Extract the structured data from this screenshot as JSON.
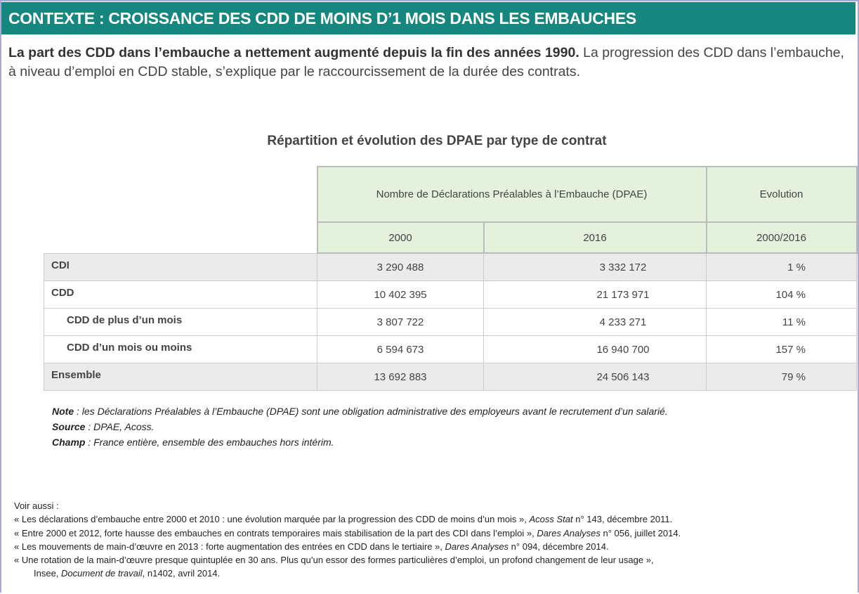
{
  "header": {
    "title": "CONTEXTE : CROISSANCE DES CDD DE MOINS D’1 MOIS DANS LES EMBAUCHES"
  },
  "intro": {
    "bold": "La part des CDD dans l’embauche a nettement augmenté depuis la fin des années 1990.",
    "rest": " La progression des CDD dans l’embauche, à niveau d’emploi en CDD stable, s’explique par le raccourcissement de la durée des contrats."
  },
  "table": {
    "title": "Répartition et évolution des DPAE par type de contrat",
    "header_group": "Nombre de Déclarations Préalables à l’Embauche (DPAE)",
    "header_evolution": "Evolution",
    "col_2000": "2000",
    "col_2016": "2016",
    "col_evol": "2000/2016",
    "rows": [
      {
        "label": "CDI",
        "v2000": "3 290 488",
        "v2016": "3 332 172",
        "evol": "1 %"
      },
      {
        "label": "CDD",
        "v2000": "10 402 395",
        "v2016": "21 173 971",
        "evol": "104 %"
      },
      {
        "label": "CDD de plus d’un mois",
        "v2000": "3 807 722",
        "v2016": "4 233 271",
        "evol": "11 %"
      },
      {
        "label": "CDD d’un mois ou moins",
        "v2000": "6 594 673",
        "v2016": "16 940 700",
        "evol": "157 %"
      },
      {
        "label": "Ensemble",
        "v2000": "13 692 883",
        "v2016": "24 506 143",
        "evol": "79 %"
      }
    ]
  },
  "notes": {
    "note_label": "Note",
    "note_text": " : les Déclarations Préalables à l’Embauche (DPAE) sont une obligation administrative des employeurs avant le recrutement d’un salarié.",
    "source_label": "Source",
    "source_text": " : DPAE, Acoss.",
    "champ_label": "Champ",
    "champ_text": " : France entière, ensemble des embauches hors intérim."
  },
  "voir": {
    "title": "Voir aussi :",
    "l1a": "« Les déclarations d’embauche entre 2000 et 2010 : une évolution marquée par la progression des CDD de moins d’un mois », ",
    "l1b": "Acoss Stat",
    "l1c": " n° 143, décembre 2011.",
    "l2a": "« Entre 2000 et 2012, forte hausse des embauches en contrats temporaires mais stabilisation de la part des CDI dans l’emploi », ",
    "l2b": "Dares Analyses",
    "l2c": " n° 056, juillet 2014.",
    "l3a": "« Les mouvements de main-d’œuvre en 2013 : forte augmentation des entrées en CDD dans le tertiaire », ",
    "l3b": "Dares Analyses",
    "l3c": " n° 094, décembre 2014.",
    "l4": "« Une rotation de la main-d’œuvre presque quintuplée en 30 ans. Plus qu’un essor des formes particulières d’emploi, un profond changement de leur usage »,",
    "l5a": "Insee, ",
    "l5b": "Document de travail",
    "l5c": ", n1402, avril 2014."
  }
}
